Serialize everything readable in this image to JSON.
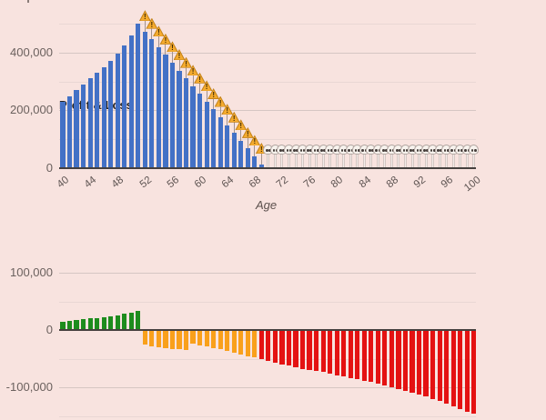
{
  "page": {
    "background": "#f8e3df"
  },
  "top_chart": {
    "axis_title": "Age",
    "y_tick_labels": [
      "400,000",
      "200,000",
      "0"
    ],
    "x_tick_labels": [
      "40",
      "44",
      "48",
      "52",
      "56",
      "60",
      "64",
      "68",
      "72",
      "76",
      "80",
      "84",
      "88",
      "92",
      "96",
      "100"
    ]
  },
  "bottom_chart": {
    "title": "Profit & Loss",
    "y_tick_labels": [
      "100,000",
      "0",
      "-100,000"
    ]
  },
  "colors": {
    "background": "#f8e3df",
    "balance_bar": "#4371c6",
    "profit_bar": "#1d8c1d",
    "moderate_loss_bar": "#f9a01b",
    "severe_loss_bar": "#e41212",
    "warning_icon": "#f5ab2e",
    "skull_icon": "#f8f3ee",
    "major_gridline": "#d6c6c3",
    "minor_gridline": "#e9d7d4",
    "axis_line": "#45403e"
  },
  "chart_data": [
    {
      "type": "bar",
      "title": "",
      "xlabel": "Age",
      "ylabel": "",
      "ylim": [
        0,
        520000
      ],
      "grid": true,
      "x": [
        40,
        41,
        42,
        43,
        44,
        45,
        46,
        47,
        48,
        49,
        50,
        51,
        52,
        53,
        54,
        55,
        56,
        57,
        58,
        59,
        60,
        61,
        62,
        63,
        64,
        65,
        66,
        67,
        68,
        69,
        70,
        71,
        72,
        73,
        74,
        75,
        76,
        77,
        78,
        79,
        80,
        81,
        82,
        83,
        84,
        85,
        86,
        87,
        88,
        89,
        90,
        91,
        92,
        93,
        94,
        95,
        96,
        97,
        98,
        99,
        100
      ],
      "series": [
        {
          "name": "balance",
          "color": "#4371c6",
          "values": [
            230000,
            250000,
            270000,
            290000,
            310000,
            330000,
            350000,
            372000,
            396000,
            424000,
            458000,
            500000,
            473000,
            446000,
            419000,
            392000,
            365000,
            338000,
            311000,
            284000,
            257000,
            230000,
            203000,
            176000,
            149000,
            122000,
            95000,
            68000,
            41000,
            14000,
            0,
            0,
            0,
            0,
            0,
            0,
            0,
            0,
            0,
            0,
            0,
            0,
            0,
            0,
            0,
            0,
            0,
            0,
            0,
            0,
            0,
            0,
            0,
            0,
            0,
            0,
            0,
            0,
            0,
            0,
            0
          ]
        }
      ],
      "markers": {
        "warning_ages": [
          52,
          53,
          54,
          55,
          56,
          57,
          58,
          59,
          60,
          61,
          62,
          63,
          64,
          65,
          66,
          67,
          68,
          69
        ],
        "skull_ages": [
          70,
          71,
          72,
          73,
          74,
          75,
          76,
          77,
          78,
          79,
          80,
          81,
          82,
          83,
          84,
          85,
          86,
          87,
          88,
          89,
          90,
          91,
          92,
          93,
          94,
          95,
          96,
          97,
          98,
          99,
          100
        ],
        "skull_value": 60000
      },
      "yticks": [
        {
          "value": 400000,
          "label": "400,000"
        },
        {
          "value": 200000,
          "label": "200,000"
        },
        {
          "value": 0,
          "label": "0"
        }
      ],
      "minor_grid_values": [
        500000,
        300000,
        100000
      ],
      "xticks": [
        40,
        44,
        48,
        52,
        56,
        60,
        64,
        68,
        72,
        76,
        80,
        84,
        88,
        92,
        96,
        100
      ]
    },
    {
      "type": "bar",
      "title": "Profit & Loss",
      "xlabel": "",
      "ylabel": "",
      "ylim": [
        -150000,
        100000
      ],
      "grid": true,
      "x": [
        40,
        41,
        42,
        43,
        44,
        45,
        46,
        47,
        48,
        49,
        50,
        51,
        52,
        53,
        54,
        55,
        56,
        57,
        58,
        59,
        60,
        61,
        62,
        63,
        64,
        65,
        66,
        67,
        68,
        69,
        70,
        71,
        72,
        73,
        74,
        75,
        76,
        77,
        78,
        79,
        80,
        81,
        82,
        83,
        84,
        85,
        86,
        87,
        88,
        89,
        90,
        91,
        92,
        93,
        94,
        95,
        96,
        97,
        98,
        99,
        100
      ],
      "series": [
        {
          "name": "profit_loss",
          "values": [
            15000,
            16000,
            17000,
            18500,
            20000,
            21000,
            22500,
            24000,
            26000,
            28000,
            30500,
            33500,
            -24000,
            -27000,
            -28500,
            -30000,
            -31000,
            -32000,
            -33000,
            -23000,
            -25500,
            -27500,
            -30000,
            -32500,
            -35500,
            -38500,
            -41500,
            -44000,
            -46500,
            -49000,
            -52000,
            -55000,
            -58000,
            -61000,
            -63500,
            -66000,
            -68000,
            -70000,
            -72000,
            -74500,
            -77000,
            -79500,
            -82000,
            -84500,
            -87000,
            -89500,
            -92000,
            -95000,
            -98000,
            -101000,
            -104000,
            -107500,
            -111000,
            -115000,
            -119000,
            -123000,
            -127500,
            -132000,
            -137000,
            -141000,
            -145000
          ]
        }
      ],
      "color_rules": [
        {
          "age_min": 40,
          "age_max": 51,
          "color": "#1d8c1d",
          "name": "profit"
        },
        {
          "age_min": 52,
          "age_max": 68,
          "color": "#f9a01b",
          "name": "moderate-loss"
        },
        {
          "age_min": 69,
          "age_max": 100,
          "color": "#e41212",
          "name": "severe-loss"
        }
      ],
      "yticks": [
        {
          "value": 100000,
          "label": "100,000"
        },
        {
          "value": 0,
          "label": "0"
        },
        {
          "value": -100000,
          "label": "-100,000"
        }
      ],
      "minor_grid_values": [
        50000,
        -50000,
        -150000
      ]
    }
  ]
}
